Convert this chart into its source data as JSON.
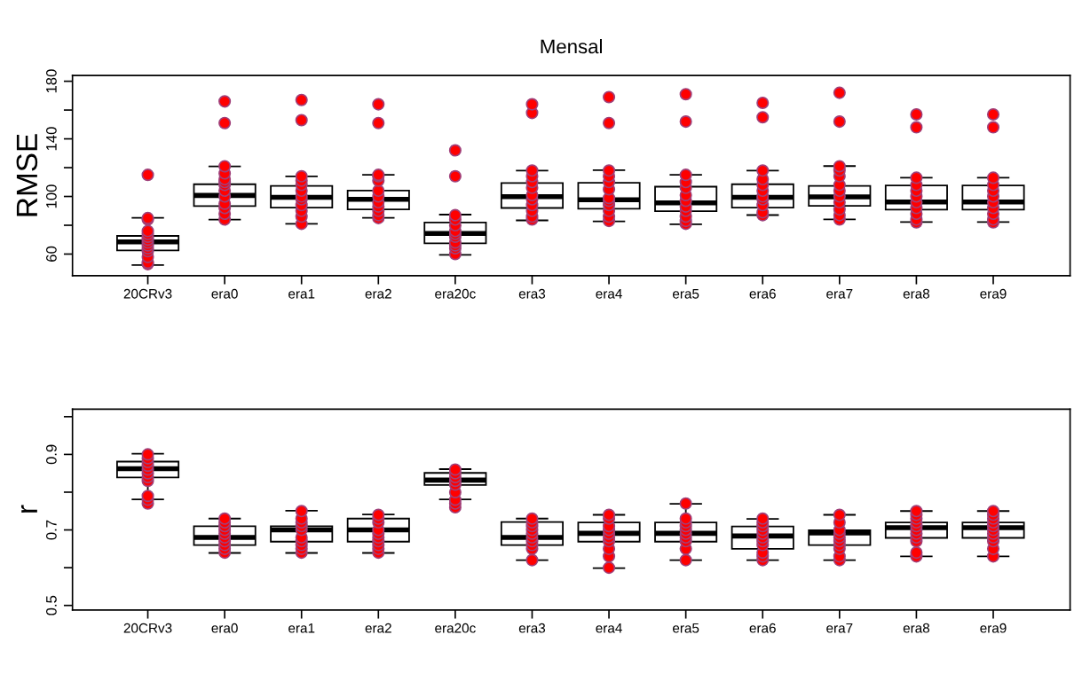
{
  "chart_data": [
    {
      "type": "box",
      "title": "Mensal",
      "ylabel": "RMSE",
      "ylim": [
        45,
        184
      ],
      "yticks": [
        60,
        {
          "value": 80,
          "label": null
        },
        100,
        {
          "value": 120,
          "label": null
        },
        140,
        {
          "value": 160,
          "label": null
        },
        180
      ],
      "grid": false,
      "categories": [
        "20CRv3",
        "era0",
        "era1",
        "era2",
        "era20c",
        "era3",
        "era4",
        "era5",
        "era6",
        "era7",
        "era8",
        "era9"
      ],
      "boxes": [
        {
          "low": 52.4,
          "q1": 62.5,
          "median": 68.4,
          "q3": 72.6,
          "high": 85.1
        },
        {
          "low": 83.9,
          "q1": 93.3,
          "median": 100.7,
          "q3": 108.5,
          "high": 120.9
        },
        {
          "low": 81,
          "q1": 92.3,
          "median": 99.4,
          "q3": 107.3,
          "high": 114
        },
        {
          "low": 85.1,
          "q1": 91,
          "median": 98,
          "q3": 104.1,
          "high": 115
        },
        {
          "low": 59.5,
          "q1": 67.4,
          "median": 74.3,
          "q3": 81.9,
          "high": 87.4
        },
        {
          "low": 83.4,
          "q1": 92,
          "median": 99.9,
          "q3": 109.3,
          "high": 117.9
        },
        {
          "low": 82.7,
          "q1": 91.5,
          "median": 97.7,
          "q3": 109.5,
          "high": 118.2
        },
        {
          "low": 80.7,
          "q1": 89.8,
          "median": 95.5,
          "q3": 106.8,
          "high": 115
        },
        {
          "low": 87.1,
          "q1": 92.3,
          "median": 99.4,
          "q3": 108.5,
          "high": 117.9
        },
        {
          "low": 84.1,
          "q1": 93.5,
          "median": 99.7,
          "q3": 107.3,
          "high": 121.1
        },
        {
          "low": 82.2,
          "q1": 90.8,
          "median": 96.2,
          "q3": 107.6,
          "high": 113
        },
        {
          "low": 82.2,
          "q1": 90.8,
          "median": 96.2,
          "q3": 107.6,
          "high": 113
        }
      ],
      "series": [
        {
          "type": "scatter",
          "color": "#ff0000",
          "marker": "circle",
          "x": [
            "20CRv3",
            "20CRv3",
            "20CRv3",
            "20CRv3",
            "20CRv3",
            "20CRv3",
            "20CRv3",
            "20CRv3",
            "20CRv3",
            "20CRv3",
            "20CRv3",
            "20CRv3",
            "20CRv3",
            "20CRv3",
            "era0",
            "era0",
            "era0",
            "era0",
            "era0",
            "era0",
            "era0",
            "era0",
            "era0",
            "era0",
            "era0",
            "era0",
            "era0",
            "era1",
            "era1",
            "era1",
            "era1",
            "era1",
            "era1",
            "era1",
            "era1",
            "era1",
            "era1",
            "era1",
            "era1",
            "era2",
            "era2",
            "era2",
            "era2",
            "era2",
            "era2",
            "era2",
            "era2",
            "era2",
            "era2",
            "era2",
            "era2",
            "era20c",
            "era20c",
            "era20c",
            "era20c",
            "era20c",
            "era20c",
            "era20c",
            "era20c",
            "era20c",
            "era20c",
            "era20c",
            "era20c",
            "era3",
            "era3",
            "era3",
            "era3",
            "era3",
            "era3",
            "era3",
            "era3",
            "era3",
            "era3",
            "era3",
            "era3",
            "era4",
            "era4",
            "era4",
            "era4",
            "era4",
            "era4",
            "era4",
            "era4",
            "era4",
            "era4",
            "era4",
            "era4",
            "era5",
            "era5",
            "era5",
            "era5",
            "era5",
            "era5",
            "era5",
            "era5",
            "era5",
            "era5",
            "era5",
            "era5",
            "era6",
            "era6",
            "era6",
            "era6",
            "era6",
            "era6",
            "era6",
            "era6",
            "era6",
            "era6",
            "era6",
            "era7",
            "era7",
            "era7",
            "era7",
            "era7",
            "era7",
            "era7",
            "era7",
            "era7",
            "era7",
            "era7",
            "era7",
            "era8",
            "era8",
            "era8",
            "era8",
            "era8",
            "era8",
            "era8",
            "era8",
            "era8",
            "era8",
            "era8",
            "era9",
            "era9",
            "era9",
            "era9",
            "era9",
            "era9",
            "era9",
            "era9",
            "era9",
            "era9",
            "era9"
          ],
          "values": [
            53,
            54,
            58,
            62,
            64,
            66,
            68,
            70,
            72,
            74,
            76,
            84,
            85,
            115,
            84,
            88,
            92,
            95,
            100,
            104,
            108,
            110,
            112,
            116,
            121,
            151,
            166,
            81,
            86,
            90,
            94,
            98,
            100,
            104,
            108,
            111,
            114,
            153,
            167,
            85,
            87,
            90,
            93,
            96,
            100,
            104,
            111,
            114,
            115,
            151,
            164,
            60,
            64,
            66,
            68,
            72,
            74,
            76,
            80,
            84,
            87,
            114,
            132,
            84,
            86,
            90,
            94,
            98,
            101,
            106,
            110,
            114,
            118,
            158,
            164,
            83,
            86,
            90,
            94,
            97,
            99,
            105,
            110,
            114,
            118,
            151,
            169,
            81,
            83,
            86,
            90,
            93,
            97,
            101,
            106,
            110,
            115,
            152,
            171,
            87,
            89,
            94,
            98,
            100,
            104,
            108,
            112,
            118,
            155,
            165,
            84,
            87,
            91,
            96,
            100,
            104,
            108,
            114,
            118,
            121,
            152,
            172,
            82,
            84,
            88,
            92,
            96,
            100,
            104,
            108,
            113,
            148,
            157,
            82,
            84,
            88,
            92,
            96,
            100,
            104,
            108,
            113,
            148,
            157
          ]
        }
      ]
    },
    {
      "type": "box",
      "ylabel": "r",
      "ylim": [
        0.488,
        1.02
      ],
      "yticks": [
        0.5,
        {
          "value": 0.6,
          "label": null
        },
        0.7,
        {
          "value": 0.8,
          "label": null
        },
        0.9,
        {
          "value": 1.0,
          "label": null
        }
      ],
      "grid": false,
      "categories": [
        "20CRv3",
        "era0",
        "era1",
        "era2",
        "era20c",
        "era3",
        "era4",
        "era5",
        "era6",
        "era7",
        "era8",
        "era9"
      ],
      "boxes": [
        {
          "low": 0.781,
          "q1": 0.839,
          "median": 0.862,
          "q3": 0.881,
          "high": 0.902
        },
        {
          "low": 0.639,
          "q1": 0.66,
          "median": 0.68,
          "q3": 0.71,
          "high": 0.73
        },
        {
          "low": 0.639,
          "q1": 0.669,
          "median": 0.7,
          "q3": 0.71,
          "high": 0.751
        },
        {
          "low": 0.639,
          "q1": 0.669,
          "median": 0.7,
          "q3": 0.73,
          "high": 0.741
        },
        {
          "low": 0.781,
          "q1": 0.819,
          "median": 0.832,
          "q3": 0.851,
          "high": 0.861
        },
        {
          "low": 0.62,
          "q1": 0.66,
          "median": 0.68,
          "q3": 0.721,
          "high": 0.73
        },
        {
          "low": 0.599,
          "q1": 0.669,
          "median": 0.691,
          "q3": 0.72,
          "high": 0.74
        },
        {
          "low": 0.62,
          "q1": 0.669,
          "median": 0.691,
          "q3": 0.72,
          "high": 0.769
        },
        {
          "low": 0.62,
          "q1": 0.65,
          "median": 0.684,
          "q3": 0.709,
          "high": 0.729
        },
        {
          "low": 0.62,
          "q1": 0.66,
          "median": 0.692,
          "q3": 0.699,
          "high": 0.74
        },
        {
          "low": 0.63,
          "q1": 0.679,
          "median": 0.706,
          "q3": 0.72,
          "high": 0.75
        },
        {
          "low": 0.63,
          "q1": 0.679,
          "median": 0.706,
          "q3": 0.72,
          "high": 0.75
        }
      ],
      "series": [
        {
          "type": "scatter",
          "color": "#ff0000",
          "marker": "circle",
          "x": [
            "20CRv3",
            "20CRv3",
            "20CRv3",
            "20CRv3",
            "20CRv3",
            "20CRv3",
            "20CRv3",
            "20CRv3",
            "20CRv3",
            "20CRv3",
            "20CRv3",
            "era0",
            "era0",
            "era0",
            "era0",
            "era0",
            "era0",
            "era0",
            "era0",
            "era0",
            "era0",
            "era1",
            "era1",
            "era1",
            "era1",
            "era1",
            "era1",
            "era1",
            "era1",
            "era1",
            "era1",
            "era2",
            "era2",
            "era2",
            "era2",
            "era2",
            "era2",
            "era2",
            "era2",
            "era2",
            "era2",
            "era20c",
            "era20c",
            "era20c",
            "era20c",
            "era20c",
            "era20c",
            "era20c",
            "era20c",
            "era20c",
            "era3",
            "era3",
            "era3",
            "era3",
            "era3",
            "era3",
            "era3",
            "era3",
            "era3",
            "era3",
            "era4",
            "era4",
            "era4",
            "era4",
            "era4",
            "era4",
            "era4",
            "era4",
            "era4",
            "era4",
            "era5",
            "era5",
            "era5",
            "era5",
            "era5",
            "era5",
            "era5",
            "era5",
            "era5",
            "era5",
            "era6",
            "era6",
            "era6",
            "era6",
            "era6",
            "era6",
            "era6",
            "era6",
            "era6",
            "era6",
            "era6",
            "era7",
            "era7",
            "era7",
            "era7",
            "era7",
            "era7",
            "era7",
            "era7",
            "era7",
            "era7",
            "era8",
            "era8",
            "era8",
            "era8",
            "era8",
            "era8",
            "era8",
            "era8",
            "era8",
            "era8",
            "era8",
            "era9",
            "era9",
            "era9",
            "era9",
            "era9",
            "era9",
            "era9",
            "era9",
            "era9",
            "era9",
            "era9"
          ],
          "values": [
            0.77,
            0.78,
            0.79,
            0.83,
            0.84,
            0.85,
            0.86,
            0.87,
            0.88,
            0.89,
            0.9,
            0.64,
            0.65,
            0.66,
            0.67,
            0.68,
            0.69,
            0.7,
            0.71,
            0.72,
            0.73,
            0.64,
            0.65,
            0.66,
            0.67,
            0.68,
            0.7,
            0.71,
            0.72,
            0.73,
            0.75,
            0.64,
            0.65,
            0.66,
            0.67,
            0.68,
            0.69,
            0.7,
            0.72,
            0.73,
            0.74,
            0.76,
            0.77,
            0.78,
            0.8,
            0.82,
            0.83,
            0.84,
            0.85,
            0.86,
            0.62,
            0.65,
            0.66,
            0.67,
            0.68,
            0.69,
            0.7,
            0.71,
            0.72,
            0.73,
            0.6,
            0.63,
            0.65,
            0.67,
            0.68,
            0.69,
            0.7,
            0.71,
            0.73,
            0.74,
            0.62,
            0.65,
            0.67,
            0.68,
            0.69,
            0.7,
            0.71,
            0.72,
            0.73,
            0.77,
            0.62,
            0.63,
            0.64,
            0.66,
            0.67,
            0.68,
            0.69,
            0.7,
            0.71,
            0.72,
            0.73,
            0.62,
            0.63,
            0.65,
            0.66,
            0.67,
            0.68,
            0.69,
            0.7,
            0.72,
            0.74,
            0.63,
            0.64,
            0.67,
            0.68,
            0.69,
            0.7,
            0.71,
            0.72,
            0.73,
            0.74,
            0.75,
            0.63,
            0.65,
            0.67,
            0.68,
            0.69,
            0.7,
            0.71,
            0.72,
            0.73,
            0.74,
            0.75
          ]
        }
      ]
    }
  ]
}
